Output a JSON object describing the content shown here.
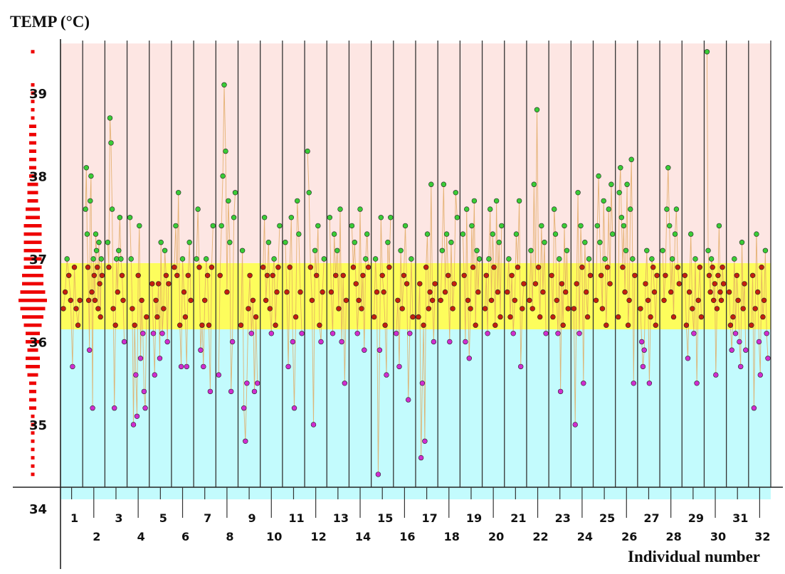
{
  "chart_data": {
    "type": "scatter",
    "title": "",
    "ylabel": "TEMP (°C)",
    "xlabel": "Individual number",
    "ylim": [
      34,
      39.6
    ],
    "y_ticks": [
      "34",
      "35",
      "36",
      "37",
      "38",
      "39"
    ],
    "bands": [
      {
        "from": 34,
        "to": 36.15,
        "color": "#c3fbfd"
      },
      {
        "from": 36.15,
        "to": 36.95,
        "color": "#fdfd5c"
      },
      {
        "from": 36.95,
        "to": 39.6,
        "color": "#fde6e3"
      }
    ],
    "zone_colors": {
      "low": "#d02dd0",
      "normal": "#c41f0f",
      "high": "#3acc37"
    },
    "individuals": [
      "1",
      "2",
      "3",
      "4",
      "5",
      "6",
      "7",
      "8",
      "9",
      "10",
      "11",
      "12",
      "13",
      "14",
      "15",
      "16",
      "17",
      "18",
      "19",
      "20",
      "21",
      "22",
      "23",
      "24",
      "25",
      "26",
      "27",
      "28",
      "29",
      "30",
      "31",
      "32"
    ],
    "series": [
      {
        "individual": "1",
        "values": [
          36.4,
          36.6,
          37.0,
          36.8,
          36.5,
          35.7,
          36.9,
          36.4,
          36.2,
          36.5
        ]
      },
      {
        "individual": "2",
        "values": [
          37.6,
          38.1,
          37.3,
          36.9,
          36.5,
          35.9,
          37.7,
          38.0,
          36.6,
          35.2,
          37.0,
          36.8,
          36.5,
          37.3,
          37.1,
          36.9,
          36.4,
          37.2,
          36.7,
          36.3,
          37.0,
          36.8
        ]
      },
      {
        "individual": "3",
        "values": [
          37.2,
          36.9,
          38.7,
          38.4,
          37.6,
          36.4,
          35.2,
          36.2,
          37.0,
          36.6,
          37.1,
          37.5,
          37.0,
          36.8,
          36.5,
          36.0
        ]
      },
      {
        "individual": "4",
        "values": [
          37.5,
          37.0,
          36.4,
          35.0,
          36.2,
          35.6,
          35.1,
          36.8,
          37.4,
          35.8,
          36.5,
          36.1,
          35.4,
          35.2,
          36.3
        ]
      },
      {
        "individual": "5",
        "values": [
          36.7,
          36.1,
          35.6,
          36.5,
          36.3,
          36.7,
          35.8,
          37.2,
          36.1,
          36.4,
          37.1,
          36.8,
          36.0,
          36.7
        ]
      },
      {
        "individual": "6",
        "values": [
          36.9,
          37.4,
          36.8,
          37.8,
          36.2,
          35.7,
          37.0,
          36.6,
          36.3,
          35.7,
          36.8,
          37.2,
          36.5
        ]
      },
      {
        "individual": "7",
        "values": [
          37.0,
          37.6,
          36.9,
          35.9,
          36.2,
          35.7,
          36.5,
          37.0,
          36.8,
          36.2,
          35.4,
          36.9,
          37.4
        ]
      },
      {
        "individual": "8",
        "values": [
          35.6,
          36.8,
          37.4,
          38.0,
          39.1,
          38.3,
          36.6,
          37.7,
          37.2,
          35.4,
          36.0,
          37.5,
          37.8
        ]
      },
      {
        "individual": "9",
        "values": [
          36.2,
          37.1,
          35.2,
          34.8,
          35.5,
          36.4,
          36.8,
          36.1,
          36.5,
          35.4,
          36.3,
          35.5
        ]
      },
      {
        "individual": "10",
        "values": [
          36.9,
          37.5,
          36.5,
          36.8,
          37.2,
          36.4,
          36.1,
          36.8,
          37.0,
          36.2,
          36.6,
          36.9,
          37.4
        ]
      },
      {
        "individual": "11",
        "values": [
          37.2,
          36.6,
          35.7,
          36.9,
          37.5,
          36.0,
          35.2,
          36.3,
          37.7,
          37.3,
          36.6,
          36.1
        ]
      },
      {
        "individual": "12",
        "values": [
          38.3,
          37.8,
          36.9,
          36.5,
          35.0,
          37.1,
          36.8,
          37.4,
          36.2,
          36.0,
          36.6,
          37.0
        ]
      },
      {
        "individual": "13",
        "values": [
          37.5,
          36.6,
          36.1,
          37.3,
          36.8,
          37.1,
          36.4,
          37.6,
          36.0,
          36.8,
          35.5,
          36.5
        ]
      },
      {
        "individual": "14",
        "values": [
          37.4,
          36.9,
          37.2,
          36.7,
          36.1,
          36.5,
          37.6,
          36.4,
          36.8,
          35.9,
          37.0,
          37.3,
          36.9
        ]
      },
      {
        "individual": "15",
        "values": [
          36.3,
          37.0,
          36.6,
          34.4,
          35.9,
          37.5,
          36.8,
          36.6,
          36.2,
          35.6,
          37.2,
          36.9,
          37.5
        ]
      },
      {
        "individual": "16",
        "values": [
          36.1,
          36.5,
          35.7,
          37.1,
          36.4,
          36.8,
          37.4,
          36.7,
          35.3,
          36.1,
          37.0,
          36.3
        ]
      },
      {
        "individual": "17",
        "values": [
          36.3,
          36.7,
          34.6,
          35.5,
          36.2,
          34.8,
          36.9,
          37.3,
          36.4,
          36.6,
          37.9,
          36.5,
          36.0,
          36.7
        ]
      },
      {
        "individual": "18",
        "values": [
          36.5,
          37.1,
          37.9,
          36.6,
          37.3,
          36.8,
          36.0,
          37.2,
          36.4,
          36.7,
          37.8,
          37.5
        ]
      },
      {
        "individual": "19",
        "values": [
          37.3,
          36.8,
          36.0,
          37.6,
          36.5,
          35.8,
          36.4,
          37.4,
          36.9,
          37.7,
          36.2,
          37.1,
          36.6,
          37.0
        ]
      },
      {
        "individual": "20",
        "values": [
          36.4,
          36.8,
          36.1,
          37.0,
          37.6,
          36.5,
          37.3,
          36.9,
          36.2,
          37.7,
          36.6,
          37.2,
          36.3,
          37.4
        ]
      },
      {
        "individual": "21",
        "values": [
          36.6,
          37.0,
          36.3,
          36.8,
          36.1,
          36.5,
          37.3,
          36.9,
          37.7,
          35.7,
          36.4,
          36.7
        ]
      },
      {
        "individual": "22",
        "values": [
          36.5,
          37.1,
          36.4,
          37.9,
          36.7,
          38.8,
          36.9,
          36.3,
          37.4,
          36.6,
          37.2,
          36.1
        ]
      },
      {
        "individual": "23",
        "values": [
          36.8,
          36.3,
          37.6,
          37.3,
          36.5,
          36.1,
          37.0,
          35.4,
          36.7,
          36.2,
          37.4,
          36.6,
          37.1,
          36.4
        ]
      },
      {
        "individual": "24",
        "values": [
          36.4,
          35.0,
          36.7,
          37.8,
          36.1,
          37.4,
          36.9,
          35.5,
          37.2,
          36.6,
          36.3,
          37.0,
          36.8
        ]
      },
      {
        "individual": "25",
        "values": [
          36.5,
          37.4,
          38.0,
          37.2,
          36.8,
          36.4,
          37.7,
          37.0,
          36.2,
          36.9,
          37.6,
          36.7,
          37.9,
          37.3
        ]
      },
      {
        "individual": "26",
        "values": [
          36.3,
          37.8,
          38.1,
          37.5,
          36.9,
          37.4,
          36.6,
          37.1,
          37.9,
          36.2,
          36.5,
          37.6,
          38.2,
          37.0,
          35.5,
          36.8
        ]
      },
      {
        "individual": "27",
        "values": [
          36.4,
          36.0,
          35.7,
          35.9,
          36.7,
          37.1,
          36.5,
          35.5,
          36.3,
          37.0,
          36.9,
          36.6,
          36.2,
          36.8
        ]
      },
      {
        "individual": "28",
        "values": [
          37.1,
          36.5,
          36.8,
          37.6,
          38.1,
          37.4,
          36.6,
          37.0,
          36.3,
          37.3,
          37.6,
          36.9,
          36.7
        ]
      },
      {
        "individual": "29",
        "values": [
          36.8,
          36.2,
          35.8,
          36.6,
          37.3,
          36.4,
          36.1,
          37.0,
          35.5,
          36.5,
          36.9,
          36.3
        ]
      },
      {
        "individual": "30",
        "values": [
          39.5,
          37.1,
          36.8,
          36.6,
          37.0,
          36.9,
          36.5,
          36.7,
          35.6,
          36.4,
          36.8,
          37.4,
          36.6,
          36.5,
          36.9,
          36.7
        ]
      },
      {
        "individual": "31",
        "values": [
          36.6,
          36.2,
          35.9,
          36.3,
          37.0,
          36.1,
          36.8,
          36.5,
          36.0,
          35.7,
          37.2,
          36.4,
          36.7,
          35.9
        ]
      },
      {
        "individual": "32",
        "values": [
          36.2,
          36.8,
          35.2,
          36.4,
          37.3,
          36.6,
          36.0,
          35.6,
          36.9,
          36.3,
          36.5,
          37.1,
          36.1,
          35.8
        ]
      }
    ],
    "histogram": [
      {
        "t": 34.4,
        "n": 1
      },
      {
        "t": 34.5,
        "n": 1
      },
      {
        "t": 34.6,
        "n": 1
      },
      {
        "t": 34.7,
        "n": 1
      },
      {
        "t": 34.8,
        "n": 1
      },
      {
        "t": 34.9,
        "n": 1
      },
      {
        "t": 35.0,
        "n": 1
      },
      {
        "t": 35.1,
        "n": 1
      },
      {
        "t": 35.2,
        "n": 2
      },
      {
        "t": 35.3,
        "n": 2
      },
      {
        "t": 35.4,
        "n": 2
      },
      {
        "t": 35.5,
        "n": 2
      },
      {
        "t": 35.6,
        "n": 3
      },
      {
        "t": 35.7,
        "n": 4
      },
      {
        "t": 35.8,
        "n": 4
      },
      {
        "t": 35.9,
        "n": 3
      },
      {
        "t": 36.0,
        "n": 4
      },
      {
        "t": 36.1,
        "n": 4
      },
      {
        "t": 36.2,
        "n": 5
      },
      {
        "t": 36.3,
        "n": 6
      },
      {
        "t": 36.4,
        "n": 7
      },
      {
        "t": 36.5,
        "n": 8
      },
      {
        "t": 36.6,
        "n": 7
      },
      {
        "t": 36.7,
        "n": 6
      },
      {
        "t": 36.8,
        "n": 6
      },
      {
        "t": 36.9,
        "n": 5
      },
      {
        "t": 37.0,
        "n": 5
      },
      {
        "t": 37.1,
        "n": 5
      },
      {
        "t": 37.2,
        "n": 5
      },
      {
        "t": 37.3,
        "n": 5
      },
      {
        "t": 37.4,
        "n": 5
      },
      {
        "t": 37.5,
        "n": 4
      },
      {
        "t": 37.6,
        "n": 4
      },
      {
        "t": 37.7,
        "n": 3
      },
      {
        "t": 37.8,
        "n": 3
      },
      {
        "t": 37.9,
        "n": 3
      },
      {
        "t": 38.0,
        "n": 2
      },
      {
        "t": 38.1,
        "n": 2
      },
      {
        "t": 38.2,
        "n": 2
      },
      {
        "t": 38.3,
        "n": 2
      },
      {
        "t": 38.4,
        "n": 2
      },
      {
        "t": 38.5,
        "n": 2
      },
      {
        "t": 38.6,
        "n": 2
      },
      {
        "t": 38.7,
        "n": 1
      },
      {
        "t": 38.8,
        "n": 1
      },
      {
        "t": 38.9,
        "n": 1
      },
      {
        "t": 39.0,
        "n": 1
      },
      {
        "t": 39.1,
        "n": 1
      },
      {
        "t": 39.5,
        "n": 1
      }
    ],
    "histogram_color": "#ee0000",
    "grid": false,
    "legend": "none"
  }
}
